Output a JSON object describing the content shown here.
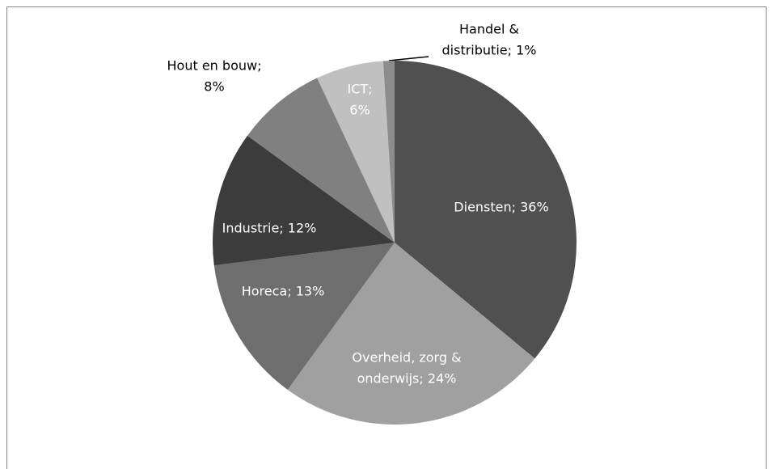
{
  "chart_data": {
    "type": "pie",
    "values": [
      36,
      24,
      13,
      12,
      8,
      6,
      1
    ],
    "value_labels": [
      [
        "Diensten; 36%"
      ],
      [
        "Overheid, zorg &",
        "onderwijs; 24%"
      ],
      [
        "Horeca; 13%"
      ],
      [
        "Industrie; 12%"
      ],
      [
        "Hout en bouw;",
        "8%"
      ],
      [
        "ICT;",
        "6%"
      ],
      [
        "Handel &",
        "distributie; 1%"
      ]
    ],
    "colors": [
      "#505050",
      "#a0a0a0",
      "#6e6e6e",
      "#3c3c3c",
      "#808080",
      "#c0c0c0",
      "#8c8c8c"
    ]
  }
}
